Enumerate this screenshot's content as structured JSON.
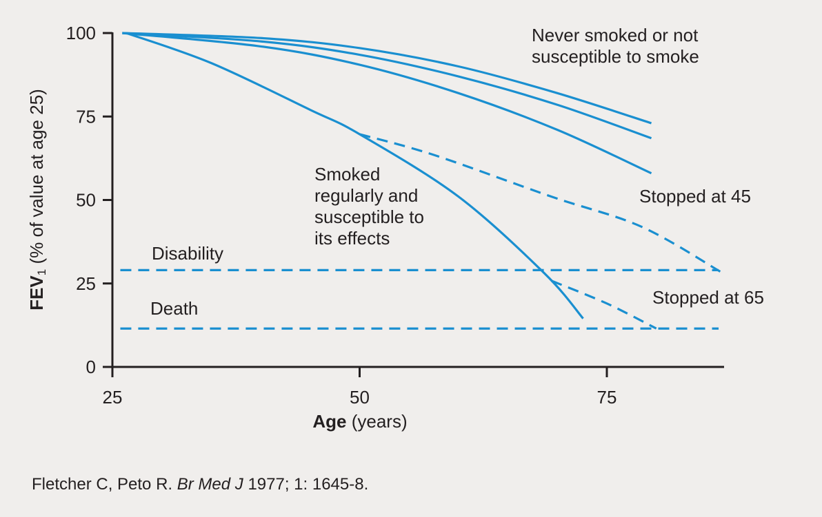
{
  "chart_data": {
    "type": "line",
    "xlabel_bold": "Age",
    "xlabel_rest": " (years)",
    "ylabel_bold": "FEV",
    "ylabel_sub": "1",
    "ylabel_rest": " (% of value at age 25)",
    "xlim": [
      25,
      87
    ],
    "ylim": [
      0,
      100
    ],
    "xticks": [
      25,
      50,
      75
    ],
    "yticks": [
      0,
      25,
      50,
      75,
      100
    ],
    "grid": false,
    "color": "#1a8fd0",
    "series": [
      {
        "id": "never",
        "style": "solid",
        "points": [
          [
            26,
            100
          ],
          [
            40,
            98.5
          ],
          [
            50,
            95.5
          ],
          [
            60,
            90
          ],
          [
            70,
            82
          ],
          [
            79.5,
            73
          ]
        ]
      },
      {
        "id": "mid1",
        "style": "solid",
        "points": [
          [
            26,
            100
          ],
          [
            40,
            97.5
          ],
          [
            50,
            93.5
          ],
          [
            60,
            87
          ],
          [
            70,
            78.5
          ],
          [
            79.5,
            68.5
          ]
        ]
      },
      {
        "id": "mid2",
        "style": "solid",
        "points": [
          [
            26,
            100
          ],
          [
            40,
            96
          ],
          [
            50,
            90.5
          ],
          [
            60,
            82
          ],
          [
            70,
            71
          ],
          [
            79.5,
            58
          ]
        ]
      },
      {
        "id": "smoker",
        "style": "solid",
        "points": [
          [
            26.4,
            100
          ],
          [
            35,
            91
          ],
          [
            45,
            77
          ],
          [
            50,
            69.7
          ],
          [
            60,
            51
          ],
          [
            68.7,
            28
          ],
          [
            72.6,
            14.5
          ]
        ]
      },
      {
        "id": "stopped45",
        "style": "dashed",
        "points": [
          [
            50,
            69.7
          ],
          [
            57.5,
            63.5
          ],
          [
            69.4,
            51
          ],
          [
            78.5,
            42
          ],
          [
            86.5,
            28.5
          ]
        ]
      },
      {
        "id": "stopped65",
        "style": "dashed",
        "points": [
          [
            69.4,
            25.8
          ],
          [
            75,
            19
          ],
          [
            80,
            11.5
          ]
        ]
      },
      {
        "id": "disability",
        "style": "dashed",
        "points": [
          [
            25.8,
            29
          ],
          [
            86.3,
            29
          ]
        ]
      },
      {
        "id": "death",
        "style": "dashed",
        "points": [
          [
            25.8,
            11.5
          ],
          [
            86.3,
            11.5
          ]
        ]
      }
    ],
    "annotations": {
      "never": [
        "Never smoked or not",
        "susceptible to smoke"
      ],
      "smoker": [
        "Smoked",
        "regularly and",
        "susceptible to",
        "its effects"
      ],
      "stopped45": "Stopped at 45",
      "stopped65": "Stopped at 65",
      "disability": "Disability",
      "death": "Death"
    }
  },
  "citation": {
    "authors": "Fletcher C, Peto R. ",
    "journal": "Br Med J",
    "details": " 1977; 1: 1645-8."
  }
}
